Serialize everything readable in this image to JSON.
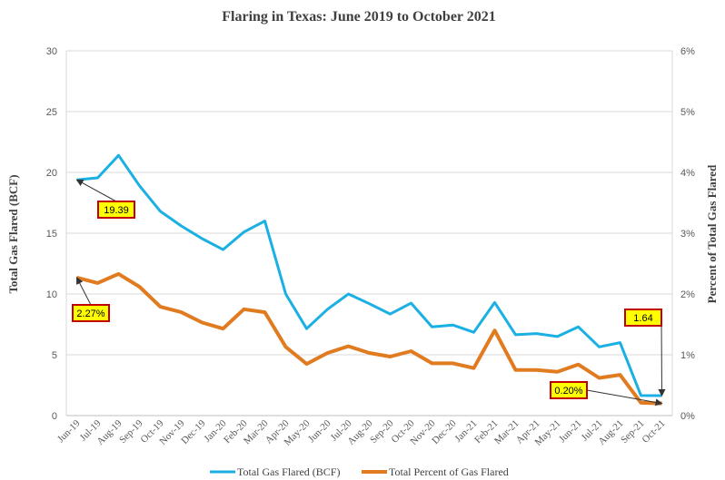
{
  "chart_data": {
    "type": "line",
    "title": "Flaring in Texas: June 2019 to October 2021",
    "ylabel_left": "Total Gas Flared (BCF)",
    "ylabel_right": "Percent of Total Gas Flared",
    "ylim_left": [
      0,
      30
    ],
    "ylim_right": [
      0,
      6
    ],
    "yticks_left": [
      "0",
      "5",
      "10",
      "15",
      "20",
      "25",
      "30"
    ],
    "yticks_right": [
      "0%",
      "1%",
      "2%",
      "3%",
      "4%",
      "5%",
      "6%"
    ],
    "grid": true,
    "legend_placement": "bottom",
    "categories": [
      "Jun-19",
      "Jul-19",
      "Aug-19",
      "Sep-19",
      "Oct-19",
      "Nov-19",
      "Dec-19",
      "Jan-20",
      "Feb-20",
      "Mar-20",
      "Apr-20",
      "May-20",
      "Jun-20",
      "Jul-20",
      "Aug-20",
      "Sep-20",
      "Oct-20",
      "Nov-20",
      "Dec-20",
      "Jan-21",
      "Feb-21",
      "Mar-21",
      "Apr-21",
      "May-21",
      "Jun-21",
      "Jul-21",
      "Aug-21",
      "Sep-21",
      "Oct-21"
    ],
    "series": [
      {
        "name": "Total Gas Flared (BCF)",
        "axis": "left",
        "color": "#1ab0e3",
        "values": [
          19.39,
          19.55,
          21.4,
          18.9,
          16.8,
          15.6,
          14.55,
          13.65,
          15.1,
          16.0,
          10.0,
          7.15,
          8.75,
          10.0,
          9.2,
          8.35,
          9.25,
          7.3,
          7.45,
          6.85,
          9.3,
          6.65,
          6.75,
          6.5,
          7.3,
          5.65,
          6.0,
          1.65,
          1.64
        ]
      },
      {
        "name": "Total Percent of Gas Flared",
        "axis": "right",
        "color": "#e07b20",
        "values": [
          2.27,
          2.18,
          2.33,
          2.12,
          1.79,
          1.7,
          1.53,
          1.43,
          1.75,
          1.7,
          1.13,
          0.85,
          1.03,
          1.14,
          1.03,
          0.97,
          1.06,
          0.86,
          0.86,
          0.78,
          1.4,
          0.75,
          0.75,
          0.72,
          0.84,
          0.62,
          0.67,
          0.21,
          0.2
        ]
      }
    ],
    "annotations": [
      {
        "text": "19.39",
        "series": 0,
        "index": 0
      },
      {
        "text": "2.27%",
        "series": 1,
        "index": 0
      },
      {
        "text": "1.64",
        "series": 0,
        "index": 28
      },
      {
        "text": "0.20%",
        "series": 1,
        "index": 28
      }
    ],
    "annotation_style": {
      "fill": "#ffff00",
      "border": "#c00000"
    }
  }
}
